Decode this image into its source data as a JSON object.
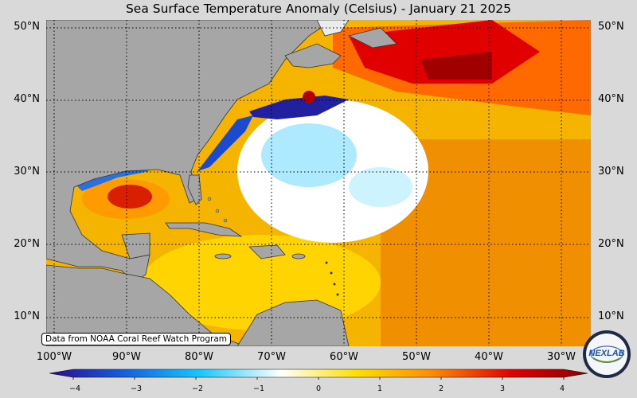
{
  "title": "Sea Surface Temperature Anomaly (Celsius) - January 21 2025",
  "credit": "Data from NOAA Coral Reef Watch Program",
  "lat_labels": [
    "50°N",
    "40°N",
    "30°N",
    "20°N",
    "10°N"
  ],
  "lon_labels": [
    "100°W",
    "90°W",
    "80°W",
    "70°W",
    "60°W",
    "50°W",
    "40°W",
    "30°W"
  ],
  "colorbar": {
    "min": -4,
    "max": 4,
    "ticks": [
      "−4",
      "−3",
      "−2",
      "−1",
      "0",
      "1",
      "2",
      "3",
      "4"
    ],
    "colors": [
      "#2a0a8c",
      "#1560e0",
      "#14c8ff",
      "#ffffff",
      "#ffe000",
      "#ff8c00",
      "#e00000",
      "#8b0000"
    ]
  },
  "logo": {
    "text": "NEXLAB",
    "icon": "nexlab-globe-logo"
  },
  "colors": {
    "land": "#a6a6a6",
    "background": "#d9d9d9",
    "grid": "#000000"
  }
}
